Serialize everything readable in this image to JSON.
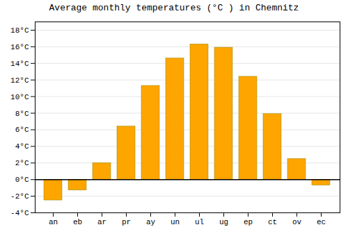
{
  "chart_data": {
    "type": "bar",
    "title": "Average monthly temperatures (°C ) in Chemnitz",
    "categories": [
      "an",
      "eb",
      "ar",
      "pr",
      "ay",
      "un",
      "ul",
      "ug",
      "ep",
      "ct",
      "ov",
      "ec"
    ],
    "values": [
      -2.5,
      -1.3,
      2.0,
      6.4,
      11.3,
      14.6,
      16.3,
      15.9,
      12.4,
      7.9,
      2.5,
      -0.7
    ],
    "color": "#FFA500",
    "ylim": [
      -4,
      19
    ],
    "yticks": [
      {
        "value": -4,
        "label": "-4°C"
      },
      {
        "value": -2,
        "label": "-2°C"
      },
      {
        "value": 0,
        "label": "0°C"
      },
      {
        "value": 2,
        "label": "2°C"
      },
      {
        "value": 4,
        "label": "4°C"
      },
      {
        "value": 6,
        "label": "6°C"
      },
      {
        "value": 8,
        "label": "8°C"
      },
      {
        "value": 10,
        "label": "10°C"
      },
      {
        "value": 12,
        "label": "12°C"
      },
      {
        "value": 14,
        "label": "14°C"
      },
      {
        "value": 16,
        "label": "16°C"
      },
      {
        "value": 18,
        "label": "18°C"
      }
    ],
    "grid": true
  }
}
